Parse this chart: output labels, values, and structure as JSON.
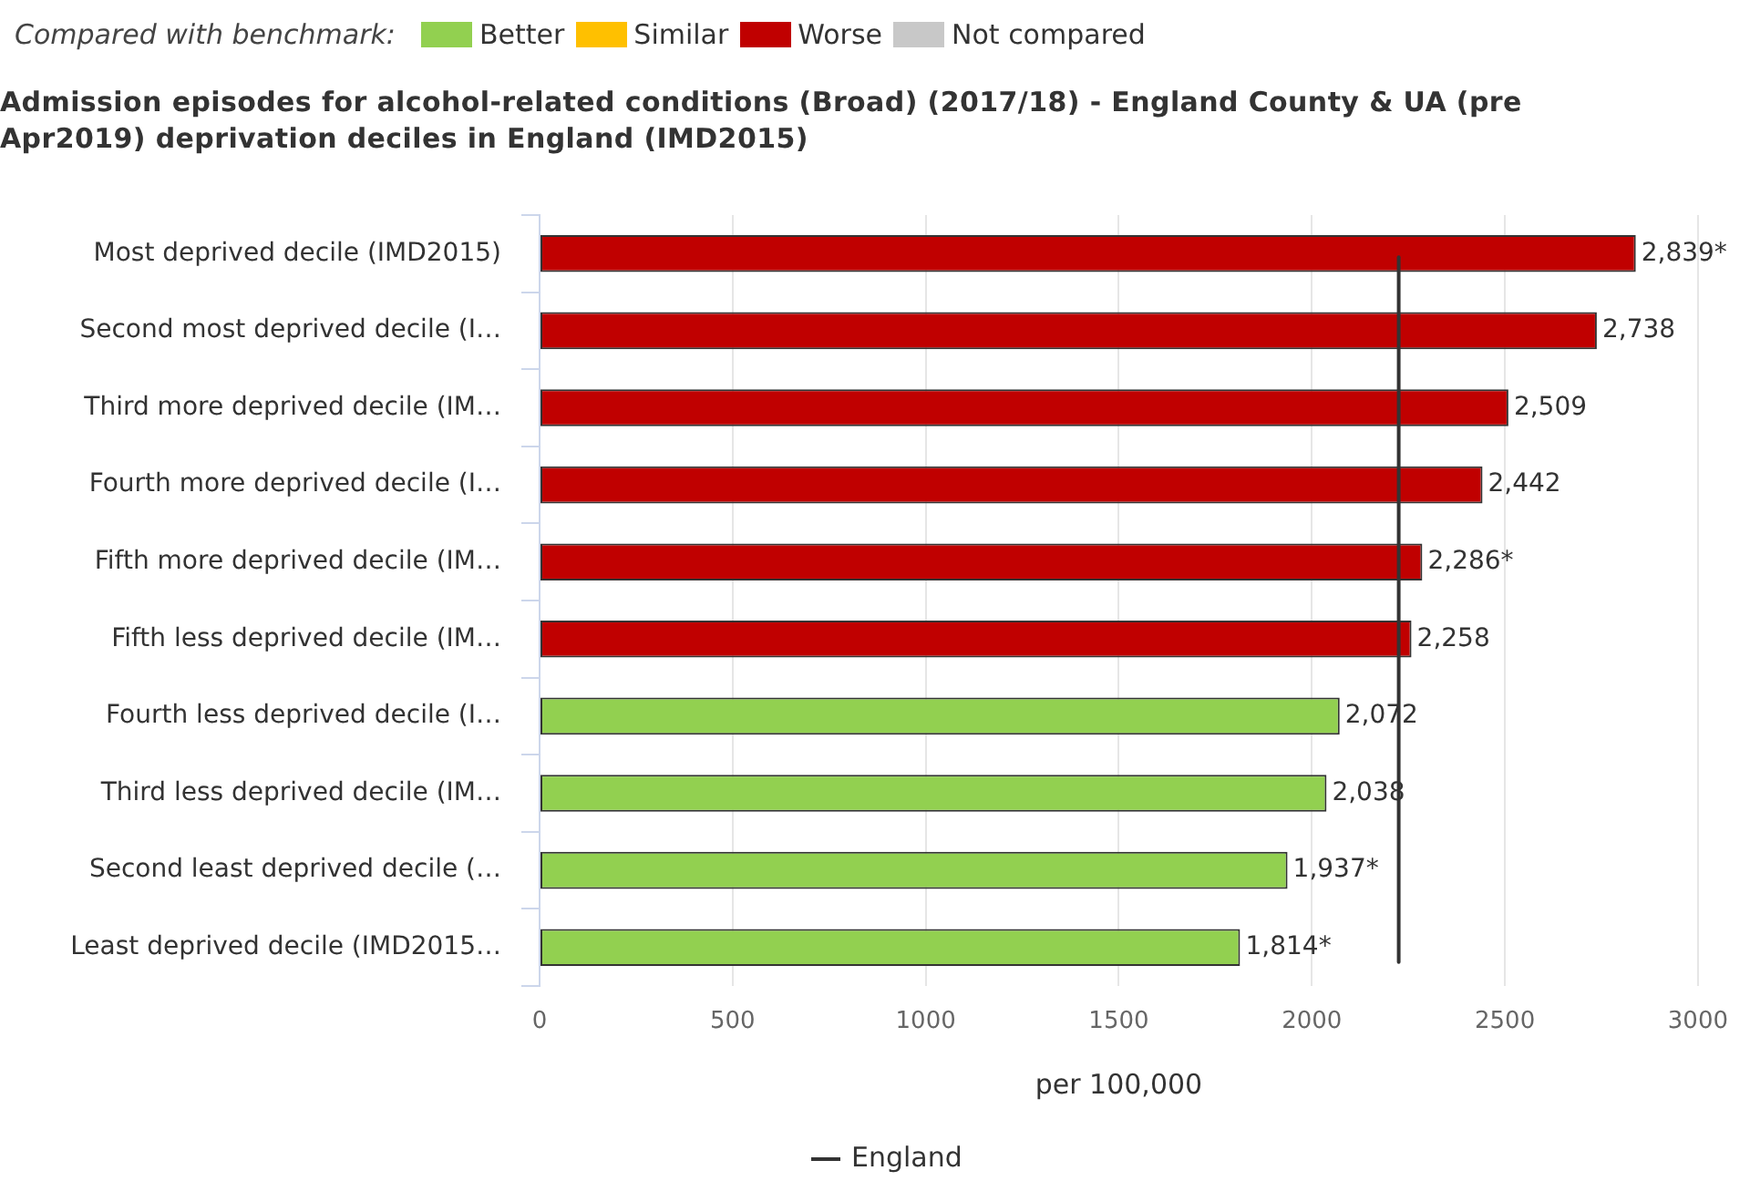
{
  "chart_data": {
    "type": "bar",
    "orientation": "horizontal",
    "stacked": true,
    "title": "Admission episodes for alcohol-related conditions (Broad) (2017/18) - England County & UA (pre Apr2019) deprivation deciles in England (IMD2015)",
    "xlabel": "per 100,000",
    "legend_title": "Compared with benchmark:",
    "categories": [
      "Most deprived decile (IMD2015)",
      "Second most deprived decile (I…",
      "Third more deprived decile (IM…",
      "Fourth more deprived decile (I…",
      "Fifth more deprived decile (IM…",
      "Fifth less deprived decile (IM…",
      "Fourth less deprived decile (I…",
      "Third less deprived decile (IM…",
      "Second least deprived decile (…",
      "Least deprived decile (IMD2015…"
    ],
    "series": [
      {
        "name": "Better",
        "color": "#92d050",
        "values": [
          null,
          null,
          null,
          null,
          null,
          null,
          2072,
          2038,
          1937,
          1814
        ],
        "value_labels": [
          null,
          null,
          null,
          null,
          null,
          null,
          "2,072",
          "2,038",
          "1,937*",
          "1,814*"
        ]
      },
      {
        "name": "Similar",
        "color": "#ffc000",
        "values": [
          null,
          null,
          null,
          null,
          null,
          null,
          null,
          null,
          null,
          null
        ]
      },
      {
        "name": "Worse",
        "color": "#c00000",
        "values": [
          2839,
          2738,
          2509,
          2442,
          2286,
          2258,
          null,
          null,
          null,
          null
        ],
        "value_labels": [
          "2,839*",
          "2,738",
          "2,509",
          "2,442",
          "2,286*",
          "2,258",
          null,
          null,
          null,
          null
        ]
      },
      {
        "name": "Not compared",
        "color": "#c8c8c8",
        "values": [
          null,
          null,
          null,
          null,
          null,
          null,
          null,
          null,
          null,
          null
        ]
      }
    ],
    "xlim": [
      0,
      3000
    ],
    "xticks": [
      0,
      500,
      1000,
      1500,
      2000,
      2500,
      3000
    ],
    "grid": "x",
    "legend": "top left",
    "ref_lines": [
      {
        "axis": "x",
        "value": 2225,
        "label": "England",
        "color": "#333333"
      }
    ]
  }
}
